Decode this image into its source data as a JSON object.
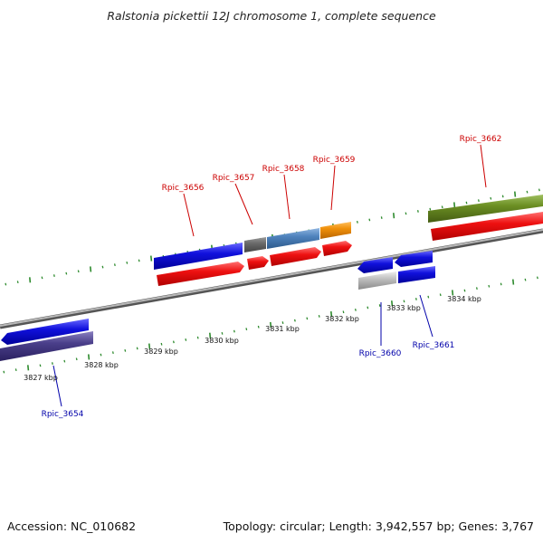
{
  "title": "Ralstonia pickettii 12J chromosome 1, complete sequence",
  "accession_text": "Accession: NC_010682",
  "summary_text": "Topology: circular; Length: 3,942,557 bp; Genes: 3,767",
  "axis_labels": [
    "3827 kbp",
    "3828 kbp",
    "3829 kbp",
    "3830 kbp",
    "3831 kbp",
    "3832 kbp",
    "3833 kbp",
    "3834 kbp"
  ],
  "top_gene_labels": [
    "Rpic_3656",
    "Rpic_3657",
    "Rpic_3658",
    "Rpic_3659",
    "Rpic_3662"
  ],
  "bottom_gene_labels": [
    "Rpic_3654",
    "Rpic_3660",
    "Rpic_3661"
  ],
  "colors": {
    "top_label": "#cc0000",
    "bottom_label": "#0000aa",
    "tick": "#2e8b2e",
    "backbone": "#8c8c8c",
    "cds_red": "#ee1111",
    "gene_blue": "#1111dd",
    "gene_navy": "#4a3f8a",
    "gene_gray": "#6a6a6a",
    "gene_steel": "#4f83bd",
    "gene_orange": "#f0900a",
    "gene_olive": "#6b8e23",
    "gene_silver": "#c0c0c0"
  }
}
